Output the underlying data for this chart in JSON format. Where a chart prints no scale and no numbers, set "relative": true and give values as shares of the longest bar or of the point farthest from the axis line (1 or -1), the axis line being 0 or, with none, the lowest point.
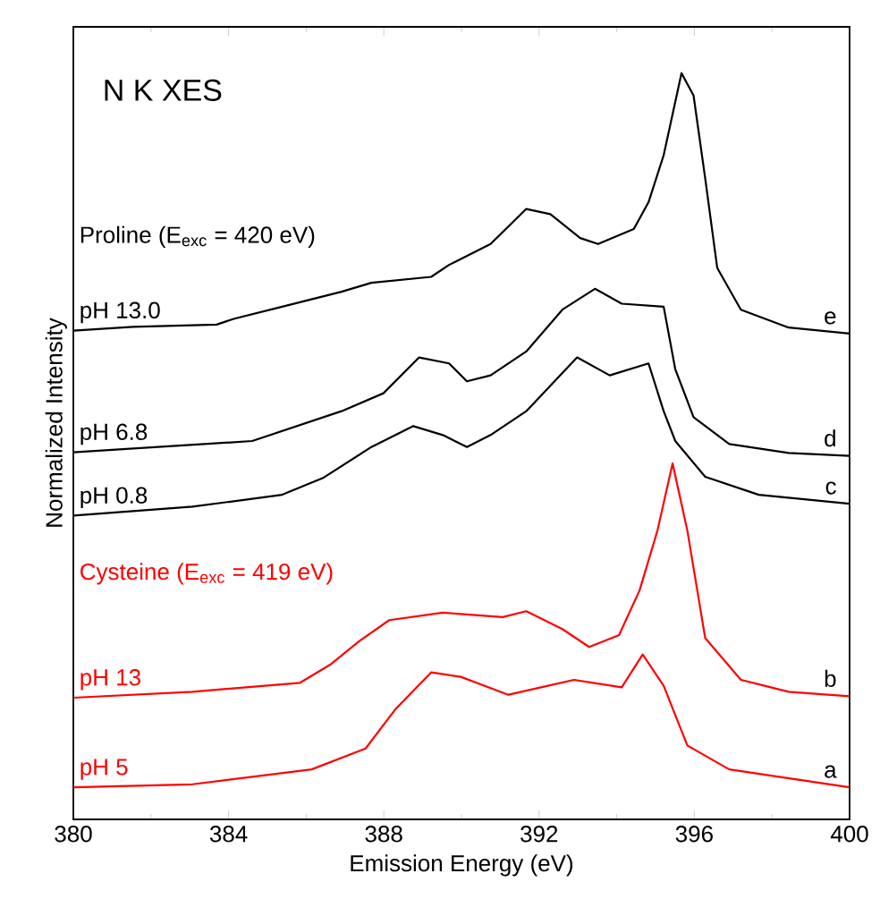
{
  "chart_data": {
    "type": "line",
    "relative": true,
    "xlabel": "Emission Energy (eV)",
    "ylabel": "Normalized Intensity",
    "xlim": [
      380,
      400
    ],
    "xticks": [
      380,
      384,
      388,
      392,
      396,
      400
    ],
    "annotations": [
      "N K XES",
      "Proline (E$_{exc}$ = 420 eV)",
      "Cysteine (E$_{exc}$ = 419 eV)",
      "e",
      "d",
      "c",
      "b",
      "a"
    ],
    "series": [
      {
        "name": "pH 13.0",
        "color": "#000000",
        "x": [
          380,
          381.54,
          383.69,
          384.15,
          385.38,
          386.91,
          387.68,
          389.22,
          389.68,
          390.75,
          391.67,
          392.29,
          393.06,
          393.52,
          394.44,
          394.82,
          395.21,
          395.67,
          395.98,
          396.28,
          396.59,
          397.2,
          398.43,
          400
        ],
        "values": [
          0.655,
          0.66,
          0.663,
          0.671,
          0.687,
          0.707,
          0.719,
          0.727,
          0.743,
          0.771,
          0.818,
          0.811,
          0.779,
          0.771,
          0.791,
          0.827,
          0.89,
          1,
          0.97,
          0.859,
          0.739,
          0.683,
          0.659,
          0.651
        ]
      },
      {
        "name": "pH 6.8",
        "color": "#000000",
        "x": [
          380,
          384.61,
          386.91,
          387.99,
          388.91,
          389.68,
          390.14,
          390.75,
          391.67,
          392.6,
          393.44,
          394.13,
          395.21,
          395.51,
          395.98,
          396.9,
          398.43,
          400
        ],
        "values": [
          0.492,
          0.507,
          0.547,
          0.571,
          0.619,
          0.611,
          0.587,
          0.595,
          0.627,
          0.683,
          0.711,
          0.691,
          0.687,
          0.603,
          0.539,
          0.503,
          0.491,
          0.487
        ]
      },
      {
        "name": "pH 0.8",
        "color": "#000000",
        "x": [
          380,
          383.07,
          385.38,
          386.45,
          387.68,
          388.76,
          389.52,
          390.14,
          390.75,
          391.67,
          392.98,
          393.82,
          394.82,
          395.21,
          395.51,
          396.28,
          397.66,
          400
        ],
        "values": [
          0.407,
          0.419,
          0.435,
          0.458,
          0.499,
          0.527,
          0.515,
          0.499,
          0.515,
          0.547,
          0.619,
          0.595,
          0.611,
          0.547,
          0.507,
          0.459,
          0.435,
          0.423
        ]
      },
      {
        "name": "pH 13",
        "color": "#ff0000",
        "x": [
          380,
          383.07,
          385.84,
          386.61,
          387.37,
          388.14,
          389.52,
          391.06,
          391.67,
          392.6,
          393.29,
          394.06,
          394.59,
          395.05,
          395.44,
          395.82,
          396.28,
          397.2,
          398.43,
          400
        ],
        "values": [
          0.163,
          0.171,
          0.183,
          0.207,
          0.239,
          0.267,
          0.277,
          0.271,
          0.279,
          0.255,
          0.231,
          0.247,
          0.307,
          0.387,
          0.477,
          0.387,
          0.243,
          0.187,
          0.171,
          0.165
        ]
      },
      {
        "name": "pH 5",
        "color": "#ff0000",
        "x": [
          380,
          383.07,
          386.14,
          387.53,
          388.29,
          389.22,
          389.98,
          391.21,
          392.9,
          394.13,
          394.67,
          395.21,
          395.82,
          396.9,
          400
        ],
        "values": [
          0.043,
          0.047,
          0.067,
          0.095,
          0.147,
          0.197,
          0.191,
          0.167,
          0.187,
          0.177,
          0.221,
          0.179,
          0.099,
          0.067,
          0.043
        ]
      }
    ]
  }
}
